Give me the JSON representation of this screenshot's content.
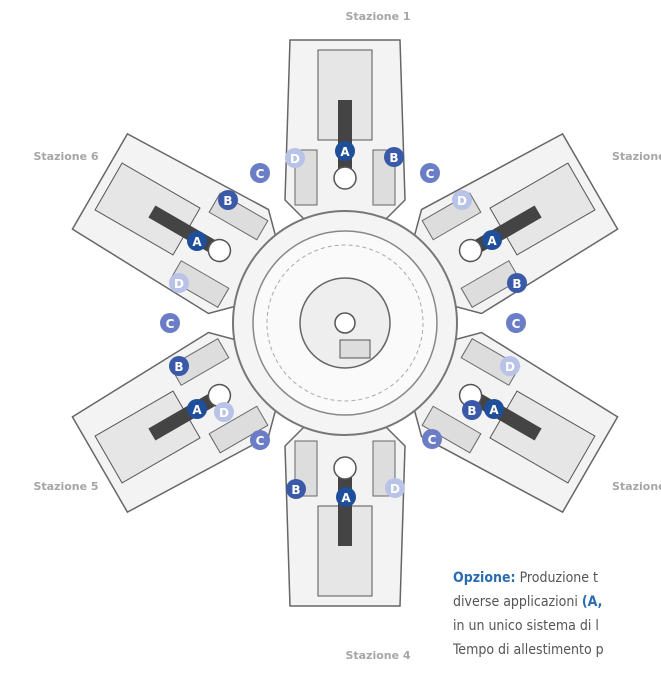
{
  "stations": [
    "Stazione 1",
    "Stazione 6",
    "Stazione",
    "Stazione 5",
    "Stazione",
    "Stazione 4"
  ],
  "markers": [
    "A",
    "A",
    "A",
    "A",
    "A",
    "A",
    "B",
    "B",
    "B",
    "B",
    "B",
    "B",
    "C",
    "C",
    "C",
    "C",
    "C",
    "C",
    "D",
    "D",
    "D",
    "D",
    "D",
    "D"
  ],
  "note": {
    "lead": "Opzione:",
    "lines": [
      "Produzione t",
      "diverse applicazioni",
      "(A,",
      "in un unico sistema di l",
      "Tempo di allestimento p"
    ]
  }
}
